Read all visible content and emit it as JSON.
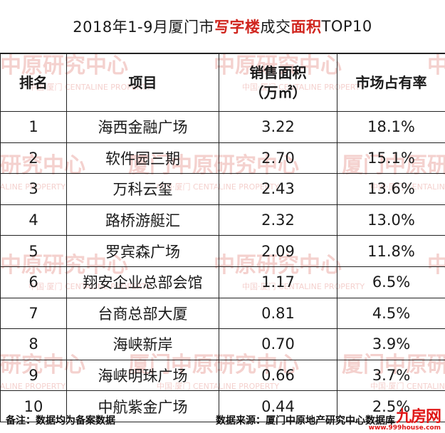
{
  "title": {
    "part1": "2018年1-9月厦门市",
    "part2": "写字楼",
    "part3": "成交",
    "part4": "面积",
    "part5": "TOP10"
  },
  "table": {
    "headers": {
      "rank": "排名",
      "project": "项目",
      "area_line1": "销售面积",
      "area_line2": "（万㎡）",
      "share": "市场占有率"
    },
    "rows": [
      {
        "rank": "1",
        "project": "海西金融广场",
        "area": "3.22",
        "share": "18.1%"
      },
      {
        "rank": "2",
        "project": "软件园三期",
        "area": "2.70",
        "share": "15.1%"
      },
      {
        "rank": "3",
        "project": "万科云玺",
        "area": "2.43",
        "share": "13.6%"
      },
      {
        "rank": "4",
        "project": "路桥游艇汇",
        "area": "2.32",
        "share": "13.0%"
      },
      {
        "rank": "5",
        "project": "罗宾森广场",
        "area": "2.09",
        "share": "11.8%"
      },
      {
        "rank": "6",
        "project": "翔安企业总部会馆",
        "area": "1.17",
        "share": "6.5%"
      },
      {
        "rank": "7",
        "project": "台商总部大厦",
        "area": "0.81",
        "share": "4.5%"
      },
      {
        "rank": "8",
        "project": "海峡新岸",
        "area": "0.70",
        "share": "3.9%"
      },
      {
        "rank": "9",
        "project": "海峡明珠广场",
        "area": "0.66",
        "share": "3.7%"
      },
      {
        "rank": "10",
        "project": "中航紫金广场",
        "area": "0.44",
        "share": "2.5%"
      }
    ]
  },
  "footer": {
    "note": "备注：数据均为备案数据",
    "source": "数据来源：厦门中原地产研究中心数据库"
  },
  "watermark": {
    "text1": "中原研究中心",
    "text2": "厦门中原研究中心",
    "text3": "中国·厦门",
    "text4": "CENTALINE PROPERTY",
    "color": "#f3c9c6"
  },
  "logo": {
    "mark": "九房网",
    "url": "www.999house.com"
  }
}
